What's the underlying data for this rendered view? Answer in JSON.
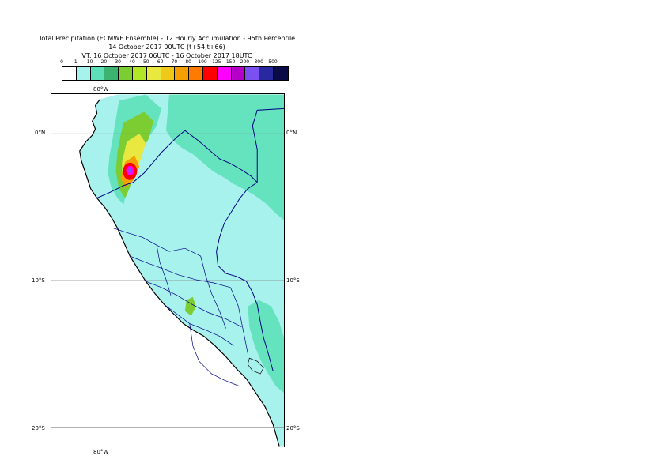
{
  "header": {
    "line1": "Total Precipitation (ECMWF Ensemble) - 12 Hourly Accumulation - 95th Percentile",
    "line2": "14 October 2017 00UTC (t+54,t+66)",
    "line3": "VT: 16 October 2017 06UTC - 16 October 2017 18UTC"
  },
  "legend": {
    "ticks": [
      "0",
      "1",
      "10",
      "20",
      "30",
      "40",
      "50",
      "60",
      "70",
      "80",
      "100",
      "125",
      "150",
      "200",
      "300",
      "500"
    ],
    "colors": [
      "#ffffff",
      "#a8f2ee",
      "#5de0b8",
      "#3cb371",
      "#7ccd32",
      "#b4e628",
      "#e8e840",
      "#f0c818",
      "#f5a000",
      "#ff7a00",
      "#ff0000",
      "#ff00ff",
      "#b400c8",
      "#7a50f0",
      "#2828a0",
      "#0a0a46"
    ]
  },
  "map": {
    "labels": {
      "lon_top": "80°W",
      "lon_bottom": "80°W",
      "lat_0_left": "0°N",
      "lat_0_right": "0°N",
      "lat_10_left": "10°S",
      "lat_10_right": "10°S",
      "lat_20_left": "20°S",
      "lat_20_right": "20°S"
    },
    "colors": {
      "ocean": "#ffffff",
      "light": "#a8f2ee",
      "medium": "#5de0b8",
      "border": "#000080",
      "coast": "#000000",
      "grid": "#808080"
    }
  }
}
